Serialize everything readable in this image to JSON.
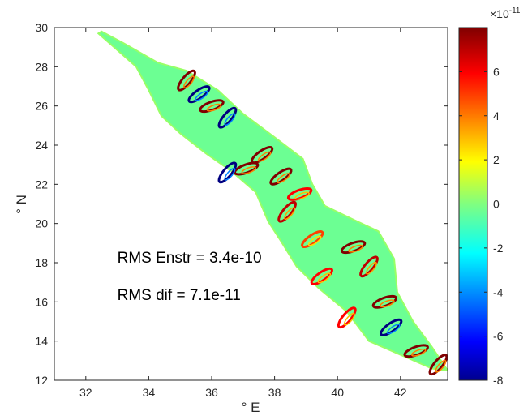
{
  "chart_data": {
    "type": "heatmap",
    "title": "",
    "xlabel": "° E",
    "ylabel": "° N",
    "xlim": [
      31,
      43.5
    ],
    "ylim": [
      12,
      30
    ],
    "xticks": [
      32,
      34,
      36,
      38,
      40,
      42
    ],
    "yticks": [
      12,
      14,
      16,
      18,
      20,
      22,
      24,
      26,
      28,
      30
    ],
    "grid": false,
    "colorbar": {
      "colormap": "jet",
      "clim": [
        -8,
        8
      ],
      "ticks": [
        -8,
        -6,
        -4,
        -2,
        0,
        2,
        4,
        6
      ],
      "multiplier": "×10",
      "exponent": "-11"
    },
    "annotations": [
      {
        "text": "RMS Enstr = 3.4e-10",
        "x": 33,
        "y": 18
      },
      {
        "text": "RMS dif = 7.1e-11",
        "x": 33,
        "y": 16.1
      }
    ],
    "region_outline": [
      [
        32.5,
        29.8
      ],
      [
        33.2,
        29.2
      ],
      [
        34.3,
        28.2
      ],
      [
        35.2,
        27.8
      ],
      [
        36.2,
        26.8
      ],
      [
        37.0,
        25.6
      ],
      [
        38.0,
        24.4
      ],
      [
        38.9,
        23.3
      ],
      [
        39.2,
        22.0
      ],
      [
        39.6,
        20.9
      ],
      [
        40.5,
        20.2
      ],
      [
        41.3,
        19.6
      ],
      [
        41.8,
        18.2
      ],
      [
        41.9,
        16.5
      ],
      [
        42.4,
        15.0
      ],
      [
        43.0,
        13.7
      ],
      [
        43.5,
        12.5
      ],
      [
        43.0,
        12.6
      ],
      [
        42.0,
        13.3
      ],
      [
        41.0,
        14.0
      ],
      [
        40.3,
        15.5
      ],
      [
        39.4,
        16.7
      ],
      [
        38.7,
        17.8
      ],
      [
        38.2,
        19.1
      ],
      [
        37.8,
        20.1
      ],
      [
        37.4,
        21.6
      ],
      [
        36.6,
        22.7
      ],
      [
        35.8,
        23.6
      ],
      [
        35.0,
        24.6
      ],
      [
        34.4,
        25.5
      ],
      [
        34.0,
        26.8
      ],
      [
        33.6,
        28.0
      ],
      [
        32.9,
        29.0
      ],
      [
        32.4,
        29.7
      ]
    ],
    "eddy_features": [
      {
        "x": 35.2,
        "y": 27.3,
        "v": 8
      },
      {
        "x": 35.6,
        "y": 26.6,
        "v": -8
      },
      {
        "x": 36.0,
        "y": 26.0,
        "v": 8
      },
      {
        "x": 36.5,
        "y": 25.4,
        "v": -8
      },
      {
        "x": 37.6,
        "y": 23.5,
        "v": 8
      },
      {
        "x": 37.1,
        "y": 22.8,
        "v": 8
      },
      {
        "x": 36.5,
        "y": 22.6,
        "v": -8
      },
      {
        "x": 38.2,
        "y": 22.4,
        "v": 8
      },
      {
        "x": 38.8,
        "y": 21.5,
        "v": 6
      },
      {
        "x": 38.4,
        "y": 20.6,
        "v": 7
      },
      {
        "x": 39.2,
        "y": 19.2,
        "v": 5
      },
      {
        "x": 40.5,
        "y": 18.8,
        "v": 8
      },
      {
        "x": 41.0,
        "y": 17.8,
        "v": 7
      },
      {
        "x": 39.5,
        "y": 17.3,
        "v": 6
      },
      {
        "x": 41.5,
        "y": 16.0,
        "v": 8
      },
      {
        "x": 40.3,
        "y": 15.2,
        "v": 6
      },
      {
        "x": 41.7,
        "y": 14.7,
        "v": -8
      },
      {
        "x": 42.5,
        "y": 13.5,
        "v": 8
      },
      {
        "x": 43.2,
        "y": 12.8,
        "v": 8
      }
    ]
  }
}
